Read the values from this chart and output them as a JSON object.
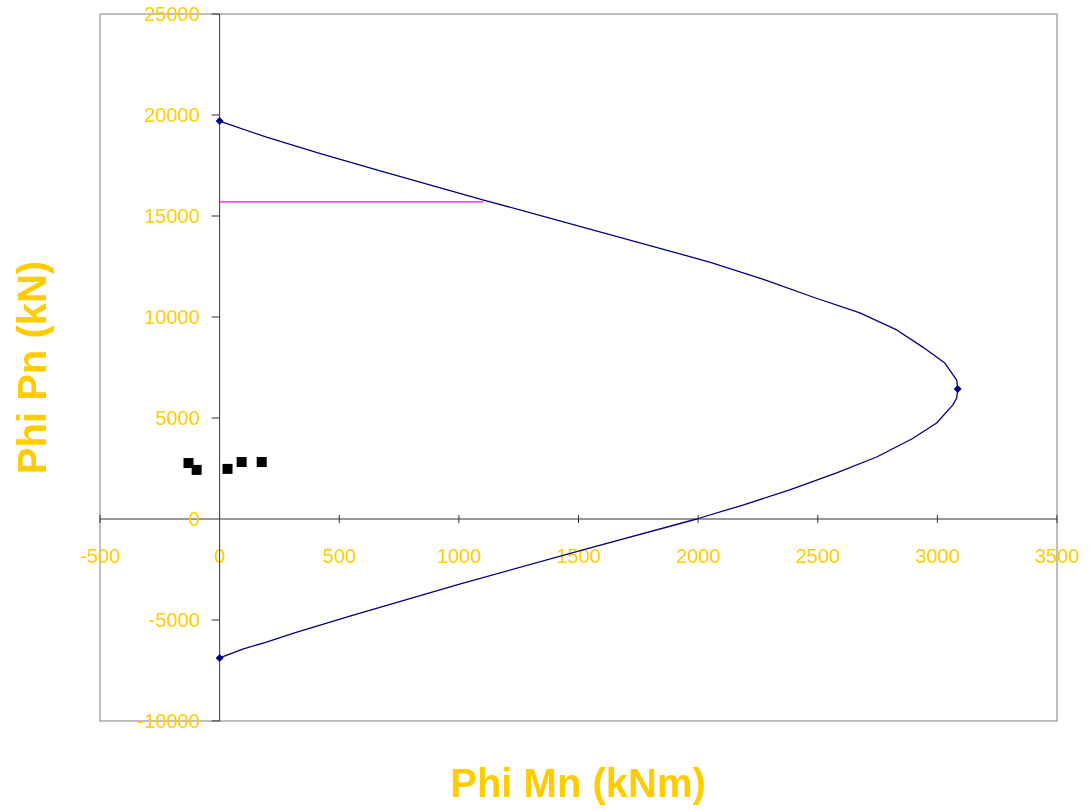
{
  "chart_data": {
    "type": "line",
    "xlabel": "Phi Mn (kNm)",
    "ylabel": "Phi Pn (kN)",
    "xlim": [
      -500,
      3500
    ],
    "xticks": [
      -500,
      0,
      500,
      1000,
      1500,
      2000,
      2500,
      3000,
      3500
    ],
    "ylim": [
      -10000,
      25000
    ],
    "yticks": [
      -10000,
      -5000,
      0,
      5000,
      10000,
      15000,
      20000,
      25000
    ],
    "grid": false,
    "series": [
      {
        "marker": "none",
        "color": "#000080",
        "x": [
          0,
          196,
          418,
          682,
          1100,
          1380,
          2048,
          2270,
          2479,
          2676,
          2830,
          2939,
          3031,
          3081,
          3085,
          3081,
          3064,
          2997,
          2893,
          2746,
          2579,
          2383,
          2187,
          1994,
          1530,
          1003,
          548,
          313,
          196,
          100,
          0
        ],
        "values": [
          19700,
          18900,
          18100,
          17200,
          15800,
          14900,
          12720,
          11880,
          10990,
          10200,
          9360,
          8510,
          7720,
          6880,
          6440,
          5990,
          5640,
          4750,
          3960,
          3070,
          2280,
          1440,
          690,
          0,
          -1490,
          -3220,
          -4800,
          -5640,
          -6090,
          -6430,
          -6880
        ]
      },
      {
        "type": "scatter",
        "marker": "diamond",
        "color": "#000080",
        "x": [
          0,
          3085,
          0
        ],
        "values": [
          19700,
          6440,
          -6880
        ]
      },
      {
        "marker": "none",
        "color": "#ff00ff",
        "x": [
          0,
          1100
        ],
        "values": [
          15700,
          15700
        ]
      },
      {
        "type": "scatter",
        "marker": "square",
        "color": "#000000",
        "x": [
          -130,
          -96,
          33,
          92,
          176
        ],
        "values": [
          2770,
          2430,
          2480,
          2820,
          2820
        ]
      }
    ]
  }
}
